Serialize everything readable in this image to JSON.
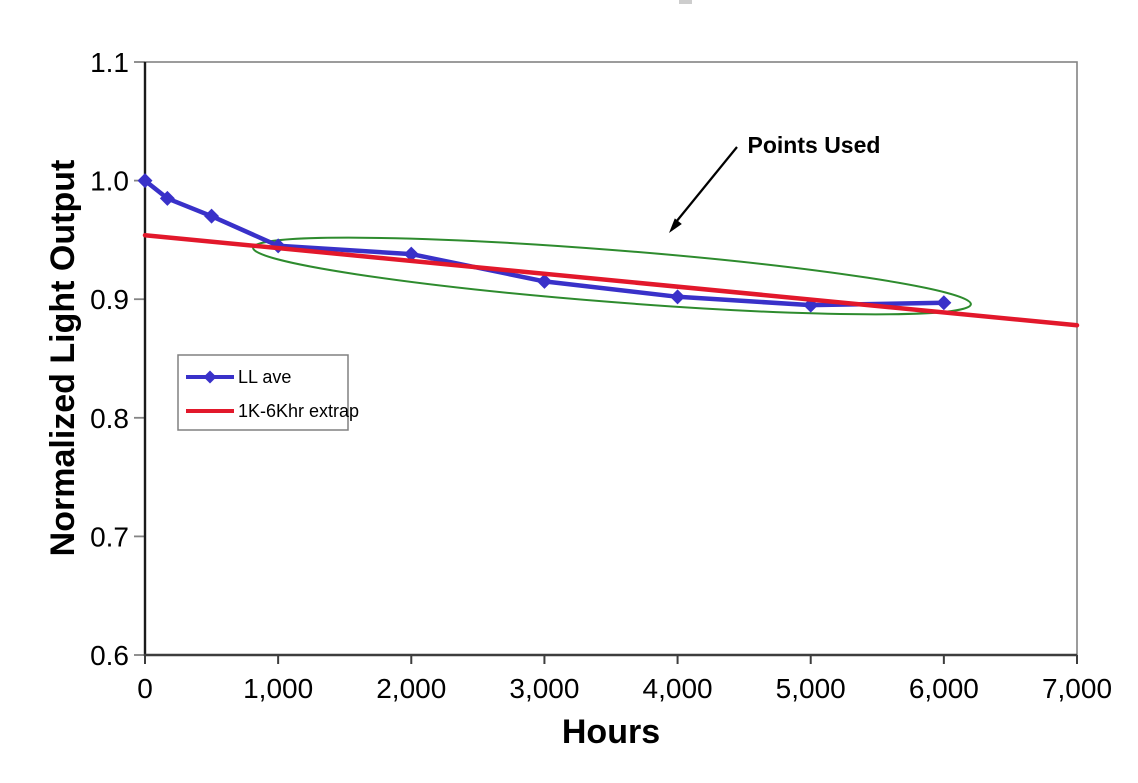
{
  "chart_data": {
    "type": "line",
    "title": "",
    "xlabel": "Hours",
    "ylabel": "Normalized Light Output",
    "xlim": [
      0,
      7000
    ],
    "ylim": [
      0.6,
      1.1
    ],
    "grid": false,
    "background": "#ffffff",
    "x_ticks": {
      "values": [
        0,
        1000,
        2000,
        3000,
        4000,
        5000,
        6000,
        7000
      ],
      "labels": [
        "0",
        "1,000",
        "2,000",
        "3,000",
        "4,000",
        "5,000",
        "6,000",
        "7,000"
      ]
    },
    "y_ticks": {
      "values": [
        0.6,
        0.7,
        0.8,
        0.9,
        1.0,
        1.1
      ],
      "labels": [
        "0.6",
        "0.7",
        "0.8",
        "0.9",
        "1.0",
        "1.1"
      ]
    },
    "series": [
      {
        "name": "LL ave",
        "color": "#3931C9",
        "marker": "diamond",
        "line_width": 4.5,
        "points": [
          [
            0,
            1.0
          ],
          [
            168,
            0.985
          ],
          [
            500,
            0.97
          ],
          [
            1000,
            0.945
          ],
          [
            2000,
            0.938
          ],
          [
            3000,
            0.915
          ],
          [
            4000,
            0.902
          ],
          [
            5000,
            0.895
          ],
          [
            6000,
            0.897
          ]
        ]
      },
      {
        "name": "1K-6Khr extrap",
        "color": "#E2182B",
        "marker": "none",
        "line_width": 4.5,
        "points": [
          [
            0,
            0.954
          ],
          [
            7000,
            0.878
          ]
        ]
      }
    ],
    "legend": {
      "position": "inside-left",
      "border_color": "#808080",
      "background": "#ffffff"
    },
    "annotation": {
      "text": "Points Used",
      "text_color": "#000000",
      "arrow_color": "#000000",
      "ellipse_color": "#2E8B2E",
      "encircled_points_x_range": [
        1000,
        6000
      ]
    },
    "axis_colors": {
      "left_axis": "#1a1a1a",
      "bottom_axis": "#3d3d3d",
      "plot_border": "#848484"
    }
  }
}
